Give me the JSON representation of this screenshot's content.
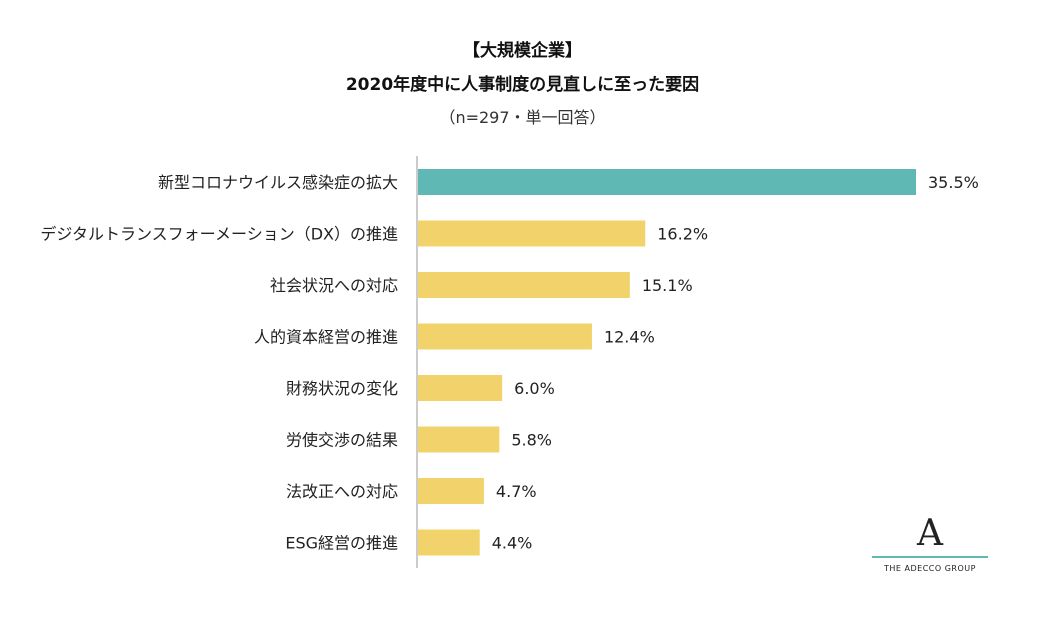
{
  "title_line1": "【大規模企業】",
  "title_line2": "2020年度中に人事制度の見直しに至った要因",
  "subtitle": "（n=297・単一回答）",
  "logo": {
    "mark": "A",
    "text": "THE ADECCO GROUP"
  },
  "colors": {
    "highlight": "#5fb8b3",
    "default": "#f2d36b",
    "axis": "#bbbbbb"
  },
  "chart_data": {
    "type": "bar",
    "orientation": "horizontal",
    "categories": [
      "新型コロナウイルス感染症の拡大",
      "デジタルトランスフォーメーション（DX）の推進",
      "社会状況への対応",
      "人的資本経営の推進",
      "財務状況の変化",
      "労使交渉の結果",
      "法改正への対応",
      "ESG経営の推進"
    ],
    "values": [
      35.5,
      16.2,
      15.1,
      12.4,
      6.0,
      5.8,
      4.7,
      4.4
    ],
    "value_labels": [
      "35.5%",
      "16.2%",
      "15.1%",
      "12.4%",
      "6.0%",
      "5.8%",
      "4.7%",
      "4.4%"
    ],
    "highlight_index": 0,
    "xlim": [
      0,
      35.5
    ],
    "unit": "%"
  }
}
